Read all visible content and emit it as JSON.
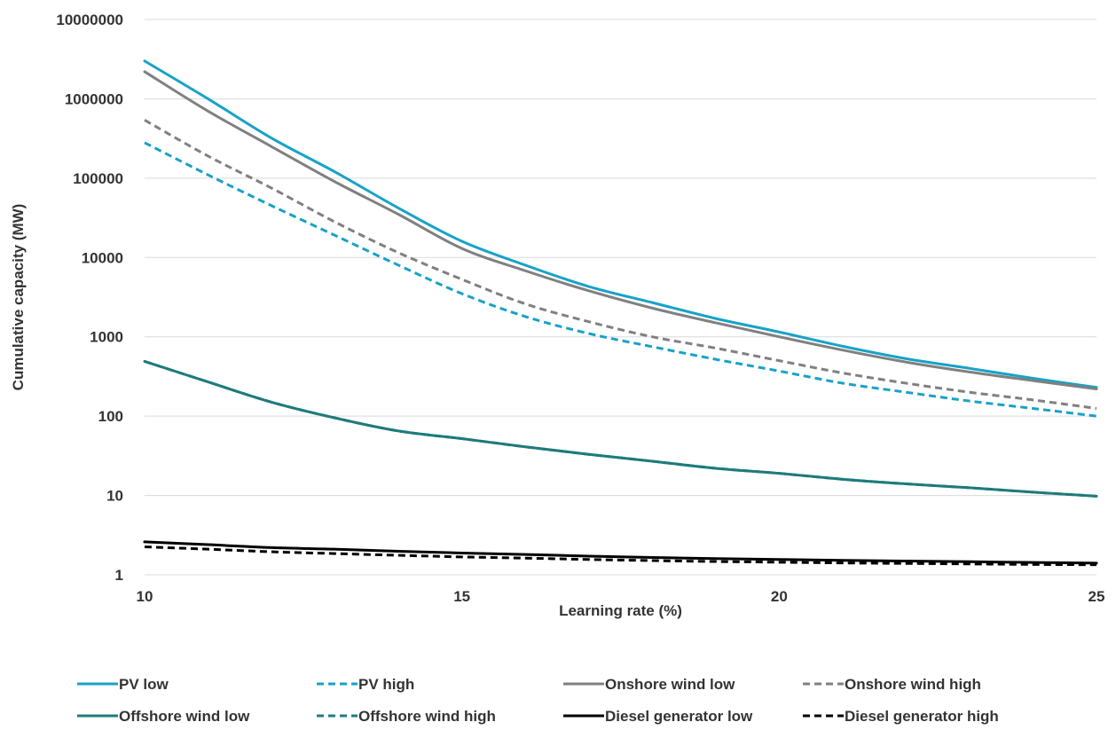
{
  "chart_data": {
    "type": "line",
    "title": "",
    "xlabel": "Learning rate (%)",
    "ylabel": "Cumulative capacity (MW)",
    "xlim": [
      10,
      25
    ],
    "ylim": [
      1,
      10000000
    ],
    "yscale": "log",
    "grid": "horizontal",
    "legend_position": "bottom",
    "x_ticks": [
      "10",
      "15",
      "20",
      "25"
    ],
    "y_ticks": [
      "1",
      "10",
      "100",
      "1000",
      "10000",
      "100000",
      "1000000",
      "10000000"
    ],
    "x": [
      10,
      11,
      12,
      13,
      14,
      15,
      16,
      17,
      18,
      19,
      20,
      21,
      22,
      23,
      24,
      25
    ],
    "series": [
      {
        "name": "PV low",
        "color": "#17a2c8",
        "dash": "solid",
        "values": [
          3000000,
          1000000,
          320000,
          120000,
          42000,
          16000,
          8000,
          4300,
          2700,
          1700,
          1150,
          760,
          530,
          400,
          300,
          230
        ]
      },
      {
        "name": "PV high",
        "color": "#17a2c8",
        "dash": "dashed",
        "values": [
          280000,
          110000,
          45000,
          19000,
          8000,
          3500,
          1800,
          1100,
          750,
          520,
          370,
          260,
          200,
          155,
          125,
          100
        ]
      },
      {
        "name": "Onshore wind low",
        "color": "#808080",
        "dash": "solid",
        "values": [
          2200000,
          700000,
          250000,
          90000,
          35000,
          13000,
          6800,
          3800,
          2300,
          1500,
          1000,
          680,
          480,
          360,
          280,
          220
        ]
      },
      {
        "name": "Onshore wind high",
        "color": "#808080",
        "dash": "dashed",
        "values": [
          540000,
          190000,
          75000,
          28000,
          11500,
          5300,
          2600,
          1550,
          1000,
          720,
          500,
          350,
          260,
          200,
          160,
          125
        ]
      },
      {
        "name": "Offshore wind low",
        "color": "#1e7b7b",
        "dash": "solid",
        "values": [
          490,
          270,
          150,
          95,
          65,
          52,
          41,
          33,
          27,
          22,
          19,
          16,
          14,
          12.5,
          11,
          9.8
        ]
      },
      {
        "name": "Offshore wind high",
        "color": "#1e7b7b",
        "dash": "dashed",
        "values": [
          490,
          270,
          150,
          95,
          65,
          52,
          41,
          33,
          27,
          22,
          19,
          16,
          14,
          12.5,
          11,
          9.8
        ]
      },
      {
        "name": "Diesel generator low",
        "color": "#000000",
        "dash": "solid",
        "values": [
          2.6,
          2.4,
          2.2,
          2.1,
          1.98,
          1.88,
          1.8,
          1.72,
          1.65,
          1.6,
          1.56,
          1.52,
          1.49,
          1.46,
          1.43,
          1.4
        ]
      },
      {
        "name": "Diesel generator high",
        "color": "#000000",
        "dash": "dashed",
        "values": [
          2.25,
          2.1,
          1.95,
          1.85,
          1.76,
          1.68,
          1.62,
          1.56,
          1.51,
          1.47,
          1.44,
          1.41,
          1.39,
          1.37,
          1.35,
          1.34
        ]
      }
    ]
  }
}
